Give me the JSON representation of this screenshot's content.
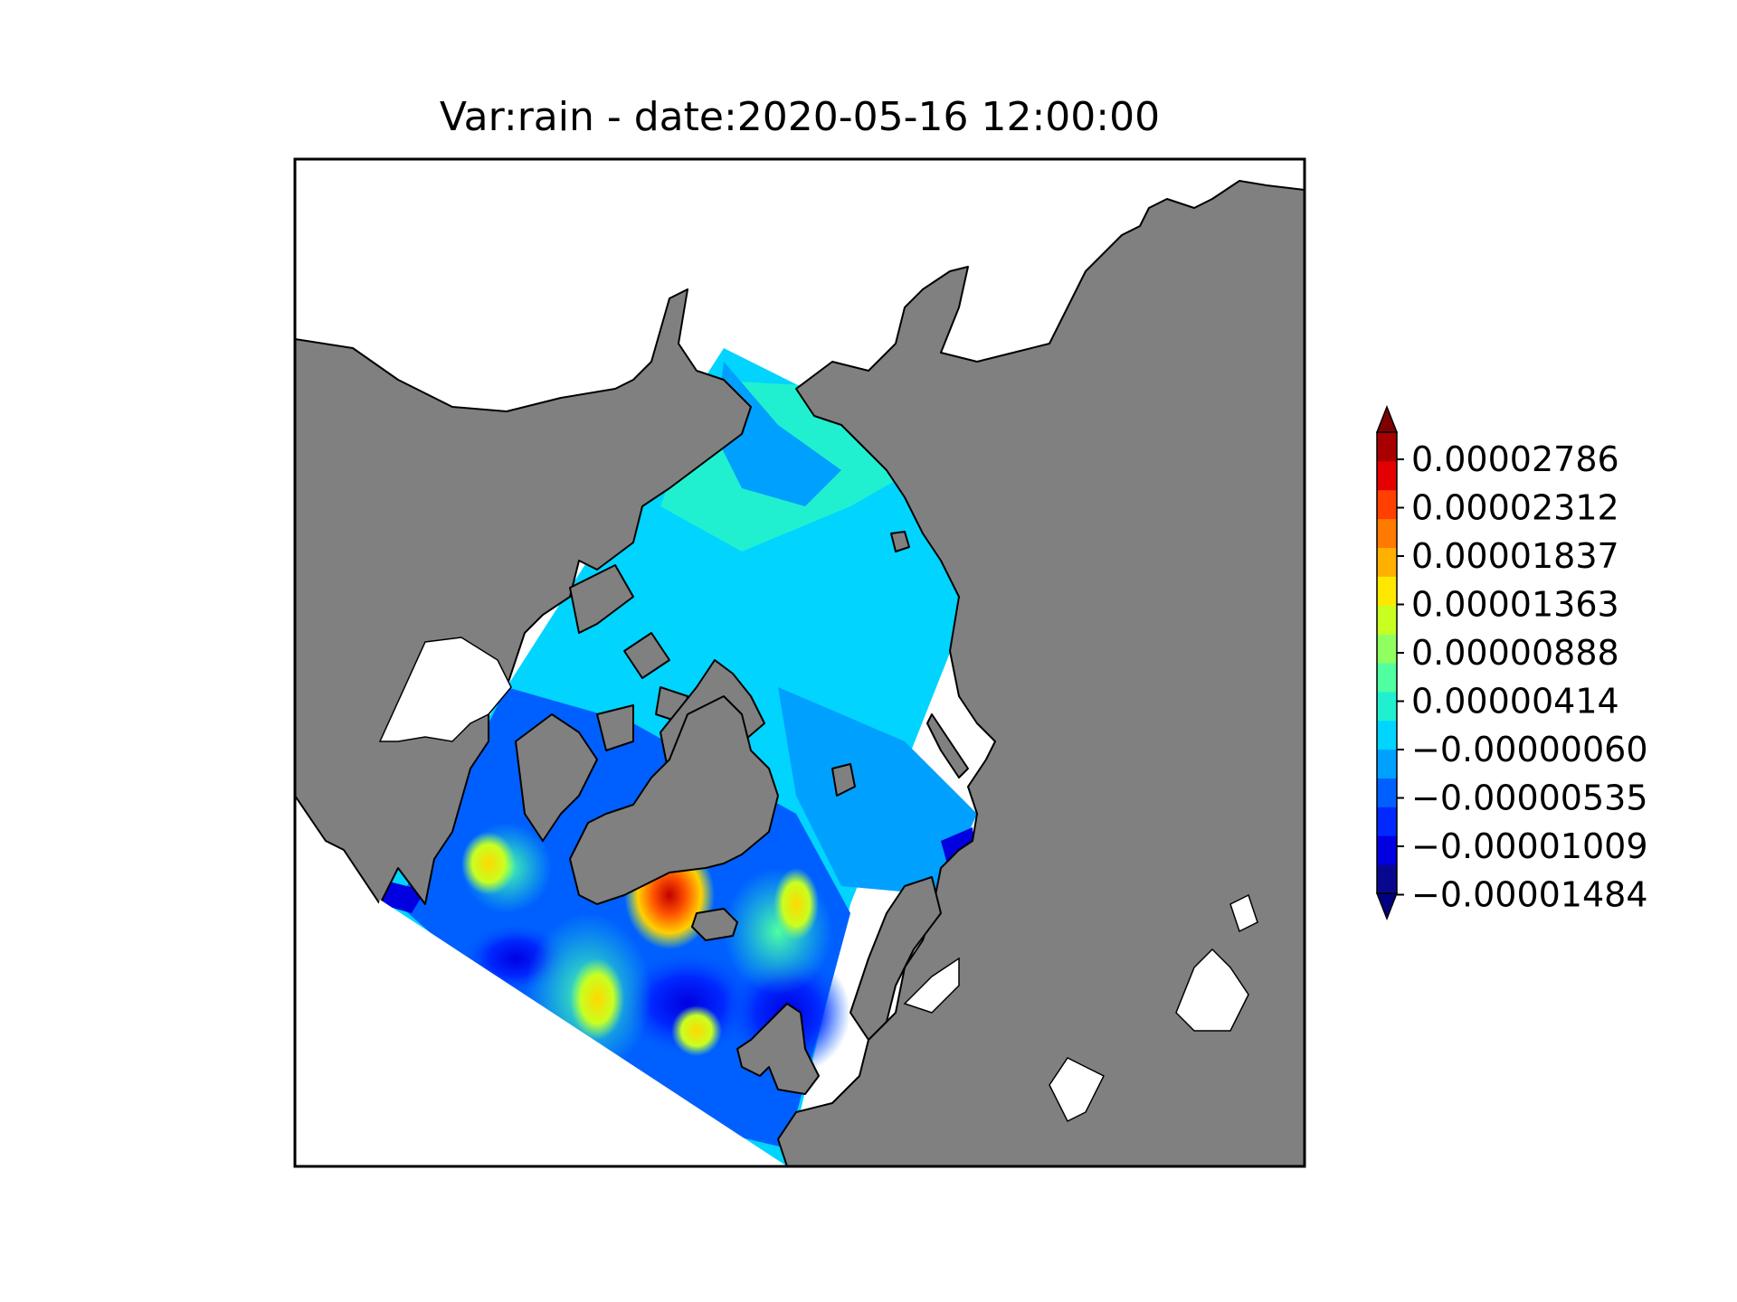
{
  "title": "Var:rain - date:2020-05-16 12:00:00",
  "map": {
    "projection": "north-polar-stereographic",
    "land_color": "#808080",
    "ocean_color": "#ffffff",
    "coastline_color": "#000000"
  },
  "colorbar": {
    "extend": "both",
    "tick_labels": [
      "0.00002786",
      "0.00002312",
      "0.00001837",
      "0.00001363",
      "0.00000888",
      "0.00000414",
      "−0.00000060",
      "−0.00000535",
      "−0.00001009",
      "−0.00001484"
    ],
    "levels_low_to_high": [
      "#08088f",
      "#0000e0",
      "#0028ff",
      "#0060ff",
      "#00a0ff",
      "#00d4ff",
      "#20f0d0",
      "#50ffa0",
      "#90ff60",
      "#c8ff20",
      "#ffe800",
      "#ffb000",
      "#ff7a00",
      "#ff4000",
      "#e40000",
      "#a80000"
    ],
    "under_color": "#000080",
    "over_color": "#800000"
  }
}
